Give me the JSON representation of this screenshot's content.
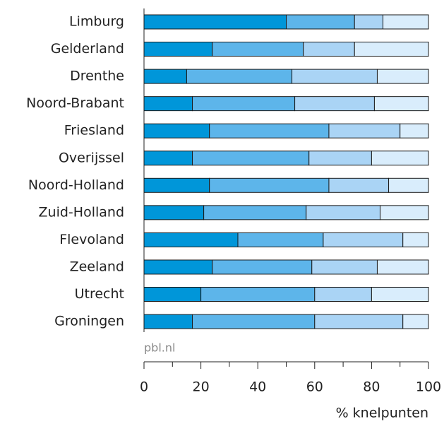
{
  "chart_data": {
    "type": "bar",
    "orientation": "horizontal",
    "stacked": true,
    "categories": [
      "Limburg",
      "Gelderland",
      "Drenthe",
      "Noord-Brabant",
      "Friesland",
      "Overijssel",
      "Noord-Holland",
      "Zuid-Holland",
      "Flevoland",
      "Zeeland",
      "Utrecht",
      "Groningen"
    ],
    "series": [
      {
        "color": "#0096d9",
        "values": [
          50,
          24,
          15,
          17,
          23,
          17,
          23,
          21,
          33,
          24,
          20,
          17
        ]
      },
      {
        "color": "#5db5ea",
        "values": [
          24,
          32,
          37,
          36,
          42,
          41,
          42,
          36,
          30,
          35,
          40,
          43
        ]
      },
      {
        "color": "#aad4f5",
        "values": [
          10,
          18,
          30,
          28,
          25,
          22,
          21,
          26,
          28,
          23,
          20,
          31
        ]
      },
      {
        "color": "#d9edfc",
        "values": [
          16,
          26,
          18,
          19,
          10,
          20,
          14,
          17,
          9,
          18,
          20,
          9
        ]
      }
    ],
    "xlim": [
      0,
      100
    ],
    "xticks": [
      0,
      20,
      40,
      60,
      80,
      100
    ],
    "x_label": "% knelpunten",
    "source": "pbl.nl"
  }
}
